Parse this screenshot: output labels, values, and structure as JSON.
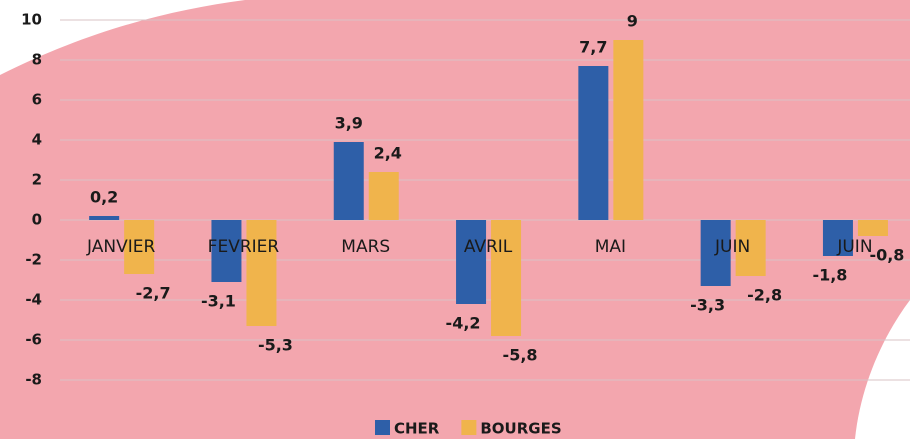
{
  "chart_data": {
    "type": "bar",
    "categories": [
      "JANVIER",
      "FEVRIER",
      "MARS",
      "AVRIL",
      "MAI",
      "JUIN",
      "JUIN"
    ],
    "series": [
      {
        "name": "CHER",
        "color": "#2e5fa8",
        "values": [
          0.2,
          -3.1,
          3.9,
          -4.2,
          7.7,
          -3.3,
          -1.8
        ],
        "value_labels": [
          "0,2",
          "-3,1",
          "3,9",
          "-4,2",
          "7,7",
          "-3,3",
          "-1,8"
        ]
      },
      {
        "name": "BOURGES",
        "color": "#f0b44c",
        "values": [
          -2.7,
          -5.3,
          2.4,
          -5.8,
          9,
          -2.8,
          -0.8
        ],
        "value_labels": [
          "-2,7",
          "-5,3",
          "2,4",
          "-5,8",
          "9",
          "-2,8",
          "-0,8"
        ]
      }
    ],
    "ylim": [
      -8,
      10
    ],
    "yticks": [
      -8,
      -6,
      -4,
      -2,
      0,
      2,
      4,
      6,
      8,
      10
    ],
    "grid": true,
    "legend": "bottom"
  }
}
